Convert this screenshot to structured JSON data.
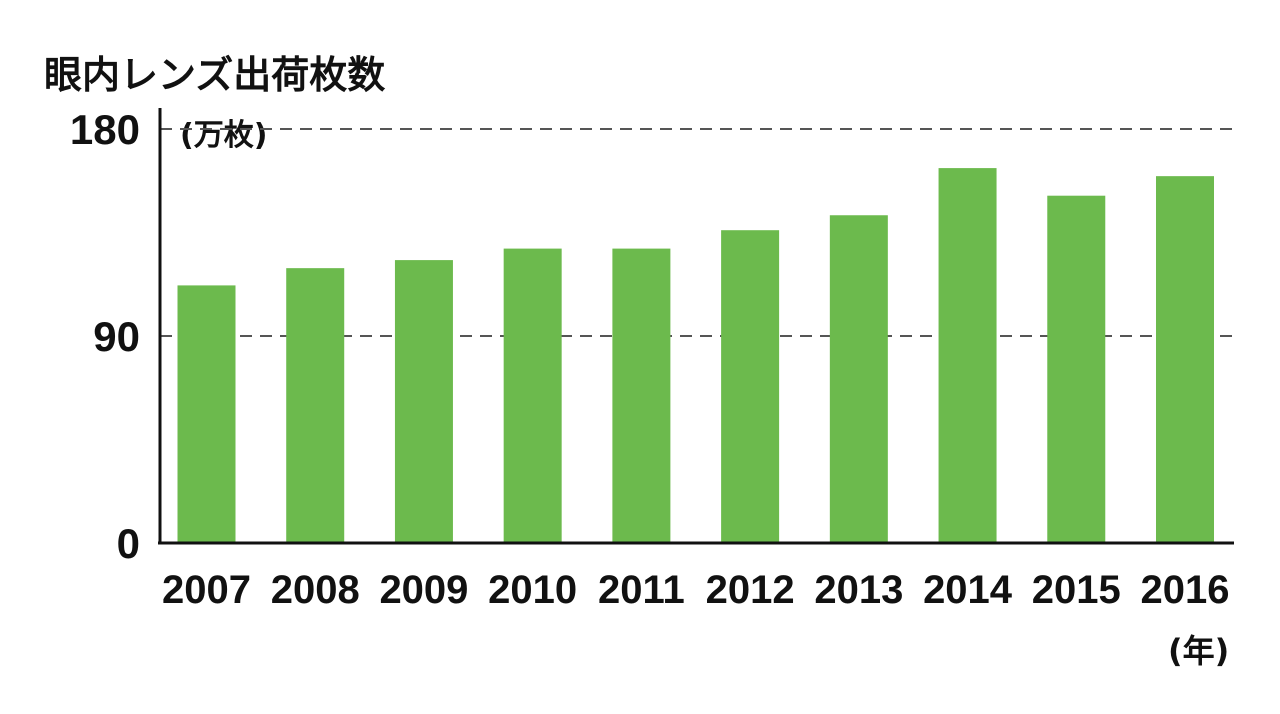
{
  "chart_data": {
    "type": "bar",
    "title": "眼内レンズ出荷枚数",
    "ylabel": "(万枚)",
    "xlabel": "(年)",
    "categories": [
      "2007",
      "2008",
      "2009",
      "2010",
      "2011",
      "2012",
      "2013",
      "2014",
      "2015",
      "2016"
    ],
    "values": [
      112,
      119.5,
      123,
      128,
      128,
      136,
      142.5,
      163,
      151,
      159.5
    ],
    "ylim": [
      0,
      180
    ],
    "yticks": [
      "0",
      "90",
      "180"
    ],
    "grid": true,
    "bar_color": "#6cba4d"
  }
}
